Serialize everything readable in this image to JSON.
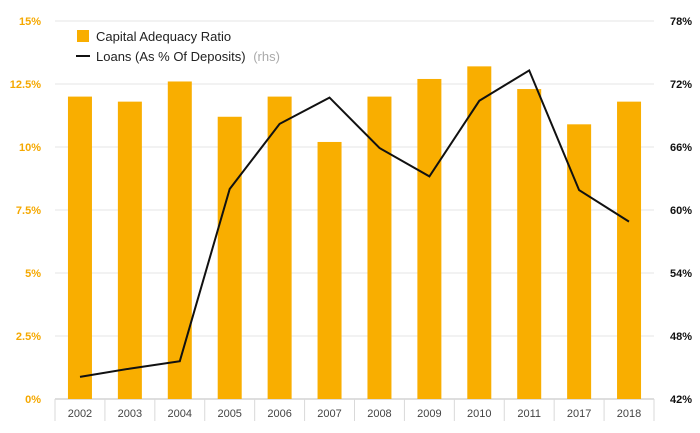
{
  "chart_data": {
    "type": "bar",
    "categories": [
      "2002",
      "2003",
      "2004",
      "2005",
      "2006",
      "2007",
      "2008",
      "2009",
      "2010",
      "2011",
      "2017",
      "2018"
    ],
    "series": [
      {
        "name": "Capital Adequacy Ratio",
        "type": "bar",
        "axis": "left",
        "values": [
          12.0,
          11.8,
          12.6,
          11.2,
          12.0,
          10.2,
          12.0,
          12.7,
          13.2,
          12.3,
          10.9,
          11.8
        ]
      },
      {
        "name": "Loans (As % Of Deposits)",
        "name_suffix": "(rhs)",
        "type": "line",
        "axis": "right",
        "values": [
          44.1,
          44.9,
          45.6,
          62.0,
          68.2,
          70.7,
          65.9,
          63.2,
          70.4,
          73.3,
          61.9,
          58.9
        ]
      }
    ],
    "left_axis": {
      "ylim": [
        0,
        15
      ],
      "ticks": [
        0,
        2.5,
        5,
        7.5,
        10,
        12.5,
        15
      ],
      "tick_labels": [
        "0%",
        "2.5%",
        "5%",
        "7.5%",
        "10%",
        "12.5%",
        "15%"
      ]
    },
    "right_axis": {
      "ylim": [
        42,
        78
      ],
      "ticks": [
        42,
        48,
        54,
        60,
        66,
        72,
        78
      ],
      "tick_labels": [
        "42%",
        "48%",
        "54%",
        "60%",
        "66%",
        "72%",
        "78%"
      ]
    },
    "grid": true,
    "legend": "top-left",
    "colors": {
      "bar": "#f9ae00",
      "line": "#111111",
      "left_ticks": "#f5a800"
    }
  }
}
